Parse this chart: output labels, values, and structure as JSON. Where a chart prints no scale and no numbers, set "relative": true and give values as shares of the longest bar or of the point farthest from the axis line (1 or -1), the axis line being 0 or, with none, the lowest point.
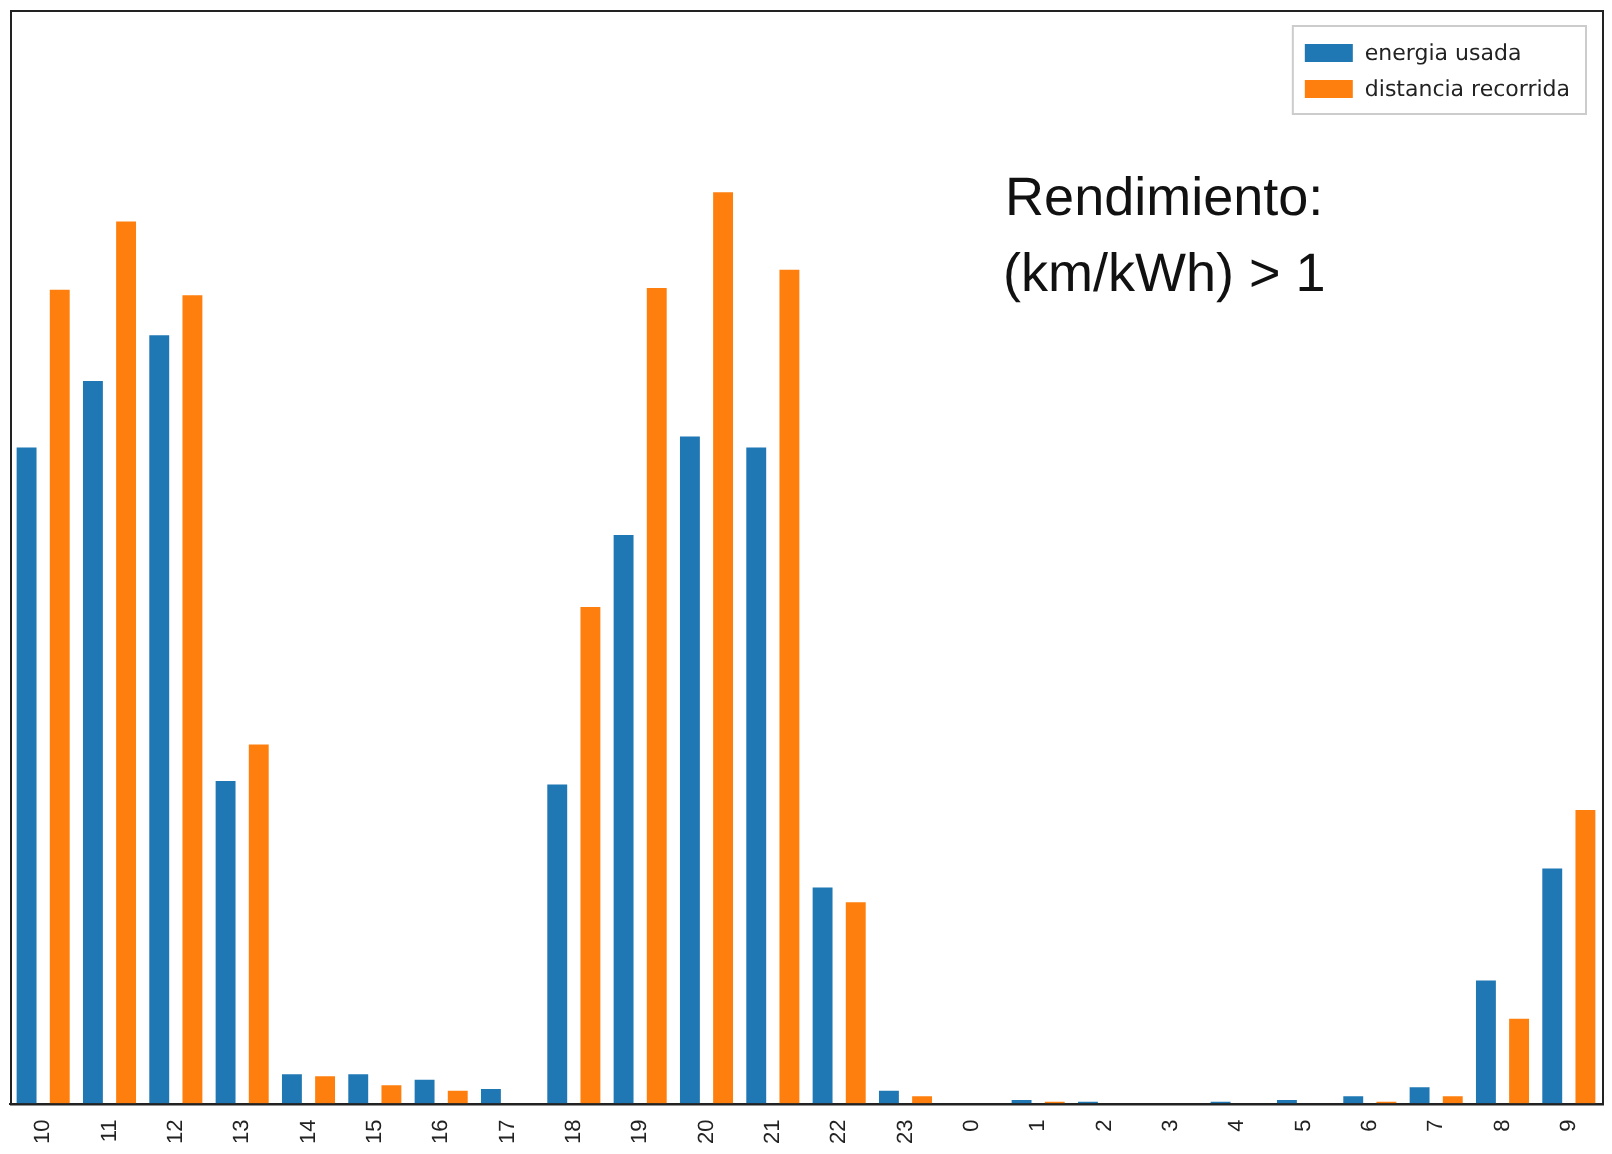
{
  "chart_data": {
    "type": "bar",
    "relative": true,
    "categories": [
      "10",
      "11",
      "12",
      "13",
      "14",
      "15",
      "16",
      "17",
      "18",
      "19",
      "20",
      "21",
      "22",
      "23",
      "0",
      "1",
      "2",
      "3",
      "4",
      "5",
      "6",
      "7",
      "8",
      "9"
    ],
    "series": [
      {
        "name": "energia usada",
        "color": "#1f77b4",
        "values": [
          0.72,
          0.793,
          0.843,
          0.354,
          0.032,
          0.032,
          0.026,
          0.016,
          0.35,
          0.624,
          0.732,
          0.72,
          0.237,
          0.014,
          0,
          0.004,
          0.002,
          0,
          0.002,
          0.004,
          0.008,
          0.018,
          0.135,
          0.258
        ]
      },
      {
        "name": "distancia recorrida",
        "color": "#ff7f0e",
        "values": [
          0.893,
          0.968,
          0.887,
          0.394,
          0.03,
          0.02,
          0.014,
          0,
          0.545,
          0.895,
          1,
          0.915,
          0.221,
          0.008,
          0,
          0.002,
          0,
          0,
          0,
          0,
          0.002,
          0.008,
          0.093,
          0.322
        ]
      }
    ],
    "annotations": [
      "Rendimiento:\n(km/kWh) > 1"
    ],
    "legend": "top right",
    "grid": false
  }
}
